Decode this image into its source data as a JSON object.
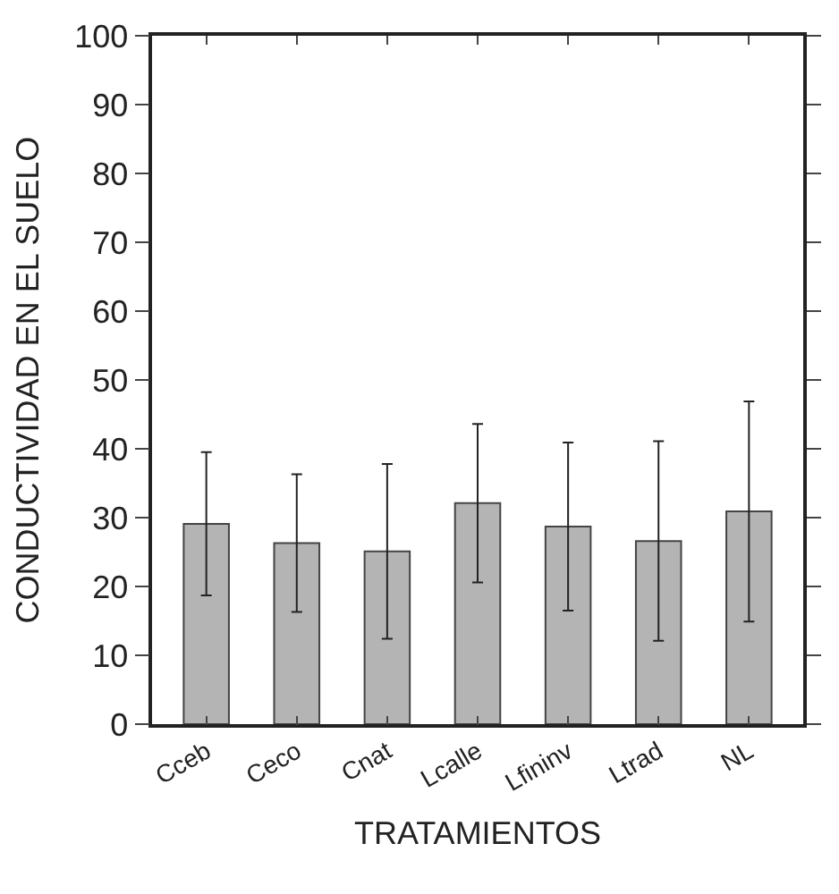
{
  "chart_data": {
    "type": "bar",
    "xlabel": "TRATAMIENTOS",
    "ylabel": "CONDUCTIVIDAD EN EL SUELO",
    "categories": [
      "Cceb",
      "Ceco",
      "Cnat",
      "Lcalle",
      "Lfininv",
      "Ltrad",
      "NL"
    ],
    "values": [
      29.1,
      26.3,
      25.1,
      32.1,
      28.7,
      26.6,
      30.9
    ],
    "errors": [
      10.4,
      10,
      12.7,
      11.5,
      12.2,
      14.5,
      16
    ],
    "color": "#b4b4b4",
    "ylim": [
      0,
      100
    ],
    "yticks": [
      0,
      10,
      20,
      30,
      40,
      50,
      60,
      70,
      80,
      90,
      100
    ]
  }
}
